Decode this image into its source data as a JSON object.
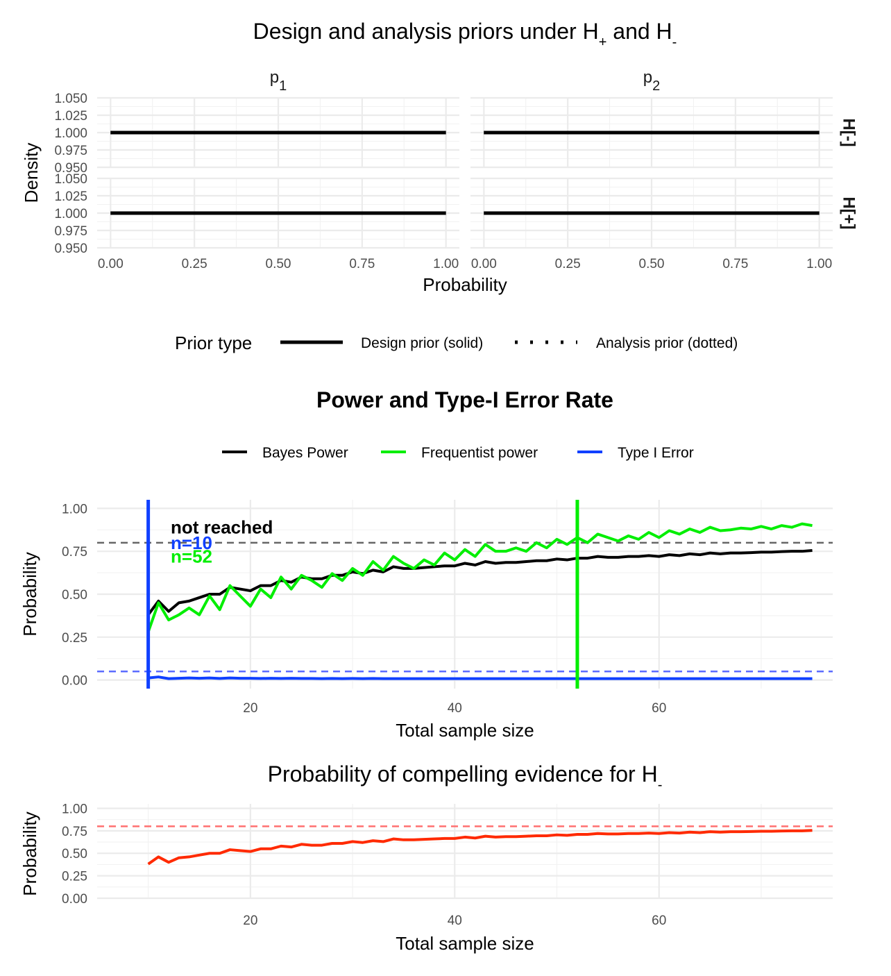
{
  "chart_data": [
    {
      "type": "line",
      "title": "Design and analysis priors under H",
      "title_sub1": "+",
      "title_mid": " and H",
      "title_sub2": "-",
      "xlabel": "Probability",
      "ylabel": "Density",
      "facets_col": [
        {
          "main": "p",
          "sub": "1"
        },
        {
          "main": "p",
          "sub": "2"
        }
      ],
      "facets_row": [
        "H[-]",
        "H[+]"
      ],
      "xlim": [
        0,
        1
      ],
      "ylim": [
        0.95,
        1.05
      ],
      "x_ticks": [
        "0.00",
        "0.25",
        "0.50",
        "0.75",
        "1.00"
      ],
      "y_ticks": [
        "0.950",
        "0.975",
        "1.000",
        "1.025",
        "1.050"
      ],
      "series": [
        {
          "name": "Design prior (solid)",
          "x": [
            0,
            1
          ],
          "values": [
            1,
            1
          ]
        },
        {
          "name": "Analysis prior (dotted)",
          "x": [
            0,
            1
          ],
          "values": [
            1,
            1
          ]
        }
      ],
      "legend": {
        "title": "Prior type",
        "placement": "bottom"
      }
    },
    {
      "type": "line",
      "title": "Power and Type-I Error Rate",
      "xlabel": "Total sample size",
      "ylabel": "Probability",
      "xlim": [
        5,
        77
      ],
      "ylim": [
        -0.05,
        1.05
      ],
      "x_ticks": [
        20,
        40,
        60
      ],
      "y_ticks": [
        "0.00",
        "0.25",
        "0.50",
        "0.75",
        "1.00"
      ],
      "legend": {
        "placement": "top"
      },
      "x": [
        10,
        11,
        12,
        13,
        14,
        15,
        16,
        17,
        18,
        19,
        20,
        21,
        22,
        23,
        24,
        25,
        26,
        27,
        28,
        29,
        30,
        31,
        32,
        33,
        34,
        35,
        36,
        37,
        38,
        39,
        40,
        41,
        42,
        43,
        44,
        45,
        46,
        47,
        48,
        49,
        50,
        51,
        52,
        53,
        54,
        55,
        56,
        57,
        58,
        59,
        60,
        61,
        62,
        63,
        64,
        65,
        66,
        67,
        68,
        69,
        70,
        71,
        72,
        73,
        74,
        75
      ],
      "series": [
        {
          "name": "Bayes Power",
          "color": "#000000",
          "values": [
            0.38,
            0.46,
            0.4,
            0.45,
            0.46,
            0.48,
            0.5,
            0.5,
            0.54,
            0.53,
            0.52,
            0.55,
            0.55,
            0.58,
            0.57,
            0.6,
            0.59,
            0.59,
            0.61,
            0.61,
            0.63,
            0.62,
            0.64,
            0.63,
            0.66,
            0.65,
            0.65,
            0.655,
            0.66,
            0.665,
            0.665,
            0.68,
            0.67,
            0.69,
            0.68,
            0.685,
            0.685,
            0.69,
            0.695,
            0.695,
            0.705,
            0.7,
            0.71,
            0.71,
            0.72,
            0.715,
            0.715,
            0.72,
            0.72,
            0.725,
            0.72,
            0.73,
            0.725,
            0.735,
            0.73,
            0.74,
            0.735,
            0.74,
            0.74,
            0.742,
            0.745,
            0.745,
            0.748,
            0.75,
            0.75,
            0.755
          ]
        },
        {
          "name": "Frequentist power",
          "color": "#00ee00",
          "values": [
            0.28,
            0.45,
            0.35,
            0.38,
            0.42,
            0.38,
            0.49,
            0.41,
            0.55,
            0.49,
            0.43,
            0.53,
            0.48,
            0.6,
            0.53,
            0.61,
            0.58,
            0.54,
            0.62,
            0.58,
            0.65,
            0.61,
            0.69,
            0.64,
            0.72,
            0.68,
            0.65,
            0.7,
            0.67,
            0.74,
            0.7,
            0.76,
            0.72,
            0.79,
            0.75,
            0.75,
            0.77,
            0.75,
            0.8,
            0.77,
            0.82,
            0.79,
            0.83,
            0.8,
            0.85,
            0.83,
            0.81,
            0.84,
            0.82,
            0.86,
            0.83,
            0.87,
            0.85,
            0.88,
            0.86,
            0.89,
            0.87,
            0.875,
            0.885,
            0.88,
            0.895,
            0.88,
            0.9,
            0.89,
            0.91,
            0.9
          ]
        },
        {
          "name": "Type I Error",
          "color": "#1040ff",
          "values": [
            0.012,
            0.018,
            0.008,
            0.01,
            0.012,
            0.01,
            0.012,
            0.009,
            0.012,
            0.01,
            0.01,
            0.009,
            0.01,
            0.009,
            0.01,
            0.009,
            0.009,
            0.008,
            0.009,
            0.008,
            0.009,
            0.008,
            0.009,
            0.008,
            0.008,
            0.008,
            0.008,
            0.008,
            0.008,
            0.008,
            0.008,
            0.008,
            0.008,
            0.008,
            0.008,
            0.008,
            0.008,
            0.008,
            0.008,
            0.008,
            0.008,
            0.008,
            0.008,
            0.008,
            0.008,
            0.008,
            0.008,
            0.008,
            0.008,
            0.008,
            0.008,
            0.008,
            0.008,
            0.008,
            0.008,
            0.008,
            0.008,
            0.008,
            0.008,
            0.008,
            0.008,
            0.008,
            0.008,
            0.008,
            0.008,
            0.008
          ]
        }
      ],
      "reference_lines": [
        {
          "axis": "y",
          "value": 0.8,
          "color": "#666666",
          "style": "dashed"
        },
        {
          "axis": "y",
          "value": 0.05,
          "color": "#5b6bff",
          "style": "dashed"
        },
        {
          "axis": "x",
          "value": 10,
          "color": "#1040ff",
          "style": "solid"
        },
        {
          "axis": "x",
          "value": 52,
          "color": "#00ee00",
          "style": "solid"
        }
      ],
      "annotations": [
        {
          "text": "not reached",
          "color": "#000000",
          "x": 12.2,
          "y": 0.89
        },
        {
          "text": "n=10",
          "color": "#1040ff",
          "x": 12.2,
          "y": 0.8
        },
        {
          "text": "n=52",
          "color": "#00ee00",
          "x": 12.2,
          "y": 0.72
        }
      ]
    },
    {
      "type": "line",
      "title": "Probability of compelling evidence for H",
      "title_sub": "-",
      "xlabel": "Total sample size",
      "ylabel": "Probability",
      "xlim": [
        5,
        77
      ],
      "ylim": [
        0,
        1.05
      ],
      "x_ticks": [
        20,
        40,
        60
      ],
      "y_ticks": [
        "0.00",
        "0.25",
        "0.50",
        "0.75",
        "1.00"
      ],
      "x": [
        10,
        11,
        12,
        13,
        14,
        15,
        16,
        17,
        18,
        19,
        20,
        21,
        22,
        23,
        24,
        25,
        26,
        27,
        28,
        29,
        30,
        31,
        32,
        33,
        34,
        35,
        36,
        37,
        38,
        39,
        40,
        41,
        42,
        43,
        44,
        45,
        46,
        47,
        48,
        49,
        50,
        51,
        52,
        53,
        54,
        55,
        56,
        57,
        58,
        59,
        60,
        61,
        62,
        63,
        64,
        65,
        66,
        67,
        68,
        69,
        70,
        71,
        72,
        73,
        74,
        75
      ],
      "series": [
        {
          "color": "#ff2a00",
          "values": [
            0.38,
            0.46,
            0.4,
            0.45,
            0.46,
            0.48,
            0.5,
            0.5,
            0.54,
            0.53,
            0.52,
            0.55,
            0.55,
            0.58,
            0.57,
            0.6,
            0.59,
            0.59,
            0.61,
            0.61,
            0.63,
            0.62,
            0.64,
            0.63,
            0.66,
            0.65,
            0.65,
            0.655,
            0.66,
            0.665,
            0.665,
            0.68,
            0.67,
            0.69,
            0.68,
            0.685,
            0.685,
            0.69,
            0.695,
            0.695,
            0.705,
            0.7,
            0.71,
            0.71,
            0.72,
            0.715,
            0.715,
            0.72,
            0.72,
            0.725,
            0.72,
            0.73,
            0.725,
            0.735,
            0.73,
            0.74,
            0.735,
            0.74,
            0.74,
            0.742,
            0.745,
            0.745,
            0.748,
            0.75,
            0.75,
            0.755
          ]
        }
      ],
      "reference_lines": [
        {
          "axis": "y",
          "value": 0.8,
          "color": "#ff7070",
          "style": "dashed"
        }
      ]
    }
  ]
}
